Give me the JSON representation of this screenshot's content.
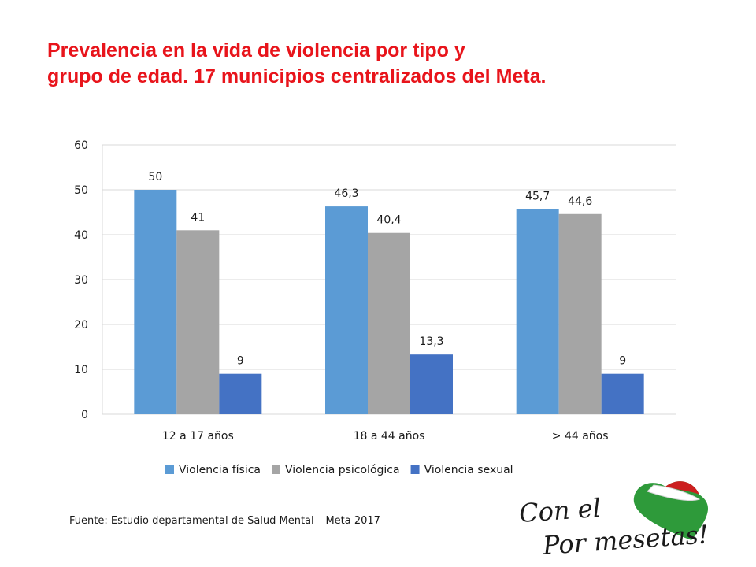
{
  "title": {
    "line1": "Prevalencia en la vida de violencia por tipo y",
    "line2": "grupo de edad. 17 municipios centralizados del Meta."
  },
  "chart_data": {
    "type": "bar",
    "categories": [
      "12 a 17 años",
      "18 a 44 años",
      "> 44 años"
    ],
    "series": [
      {
        "name": "Violencia física",
        "values": [
          50,
          46.3,
          45.7
        ],
        "labels": [
          "50",
          "46,3",
          "45,7"
        ],
        "color": "#5b9bd5"
      },
      {
        "name": "Violencia psicológica",
        "values": [
          41,
          40.4,
          44.6
        ],
        "labels": [
          "41",
          "40,4",
          "44,6"
        ],
        "color": "#a5a5a5"
      },
      {
        "name": "Violencia sexual",
        "values": [
          9,
          13.3,
          9
        ],
        "labels": [
          "9",
          "13,3",
          "9"
        ],
        "color": "#4472c4"
      }
    ],
    "ylim": [
      0,
      60
    ],
    "yticks": [
      0,
      10,
      20,
      30,
      40,
      50,
      60
    ],
    "grid": true,
    "legend": "bottom"
  },
  "source": "Fuente: Estudio departamental de Salud Mental – Meta 2017",
  "logo": {
    "line1": "Con el",
    "line2": "Por mesetas!",
    "colors": [
      "#cc1f1f",
      "#ffffff",
      "#2e9a3a"
    ]
  }
}
